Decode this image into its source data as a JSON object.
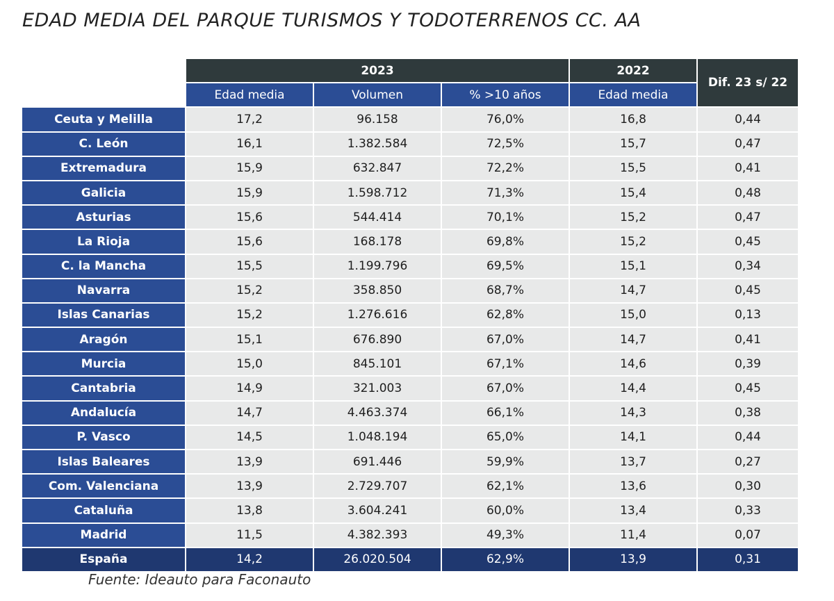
{
  "chart_data": {
    "type": "table",
    "title": "EDAD MEDIA DEL PARQUE TURISMOS Y TODOTERRENOS CC. AA",
    "group_headers": {
      "y2023": "2023",
      "y2022": "2022",
      "dif": "Dif. 23 s/ 22"
    },
    "columns": [
      "Edad media",
      "Volumen",
      "% >10 años",
      "Edad media"
    ],
    "rows": [
      [
        "Ceuta y Melilla",
        "17,2",
        "96.158",
        "76,0%",
        "16,8",
        "0,44"
      ],
      [
        "C. León",
        "16,1",
        "1.382.584",
        "72,5%",
        "15,7",
        "0,47"
      ],
      [
        "Extremadura",
        "15,9",
        "632.847",
        "72,2%",
        "15,5",
        "0,41"
      ],
      [
        "Galicia",
        "15,9",
        "1.598.712",
        "71,3%",
        "15,4",
        "0,48"
      ],
      [
        "Asturias",
        "15,6",
        "544.414",
        "70,1%",
        "15,2",
        "0,47"
      ],
      [
        "La Rioja",
        "15,6",
        "168.178",
        "69,8%",
        "15,2",
        "0,45"
      ],
      [
        "C. la Mancha",
        "15,5",
        "1.199.796",
        "69,5%",
        "15,1",
        "0,34"
      ],
      [
        "Navarra",
        "15,2",
        "358.850",
        "68,7%",
        "14,7",
        "0,45"
      ],
      [
        "Islas Canarias",
        "15,2",
        "1.276.616",
        "62,8%",
        "15,0",
        "0,13"
      ],
      [
        "Aragón",
        "15,1",
        "676.890",
        "67,0%",
        "14,7",
        "0,41"
      ],
      [
        "Murcia",
        "15,0",
        "845.101",
        "67,1%",
        "14,6",
        "0,39"
      ],
      [
        "Cantabria",
        "14,9",
        "321.003",
        "67,0%",
        "14,4",
        "0,45"
      ],
      [
        "Andalucía",
        "14,7",
        "4.463.374",
        "66,1%",
        "14,3",
        "0,38"
      ],
      [
        "P. Vasco",
        "14,5",
        "1.048.194",
        "65,0%",
        "14,1",
        "0,44"
      ],
      [
        "Islas Baleares",
        "13,9",
        "691.446",
        "59,9%",
        "13,7",
        "0,27"
      ],
      [
        "Com. Valenciana",
        "13,9",
        "2.729.707",
        "62,1%",
        "13,6",
        "0,30"
      ],
      [
        "Cataluña",
        "13,8",
        "3.604.241",
        "60,0%",
        "13,4",
        "0,33"
      ],
      [
        "Madrid",
        "11,5",
        "4.382.393",
        "49,3%",
        "11,4",
        "0,07"
      ]
    ],
    "total": [
      "España",
      "14,2",
      "26.020.504",
      "62,9%",
      "13,9",
      "0,31"
    ],
    "colors": {
      "header_dark": "#2f3a3c",
      "header_blue": "#2b4d95",
      "total": "#1f3870",
      "cell": "#e8e9e9"
    }
  },
  "source": "Fuente: Ideauto para Faconauto"
}
